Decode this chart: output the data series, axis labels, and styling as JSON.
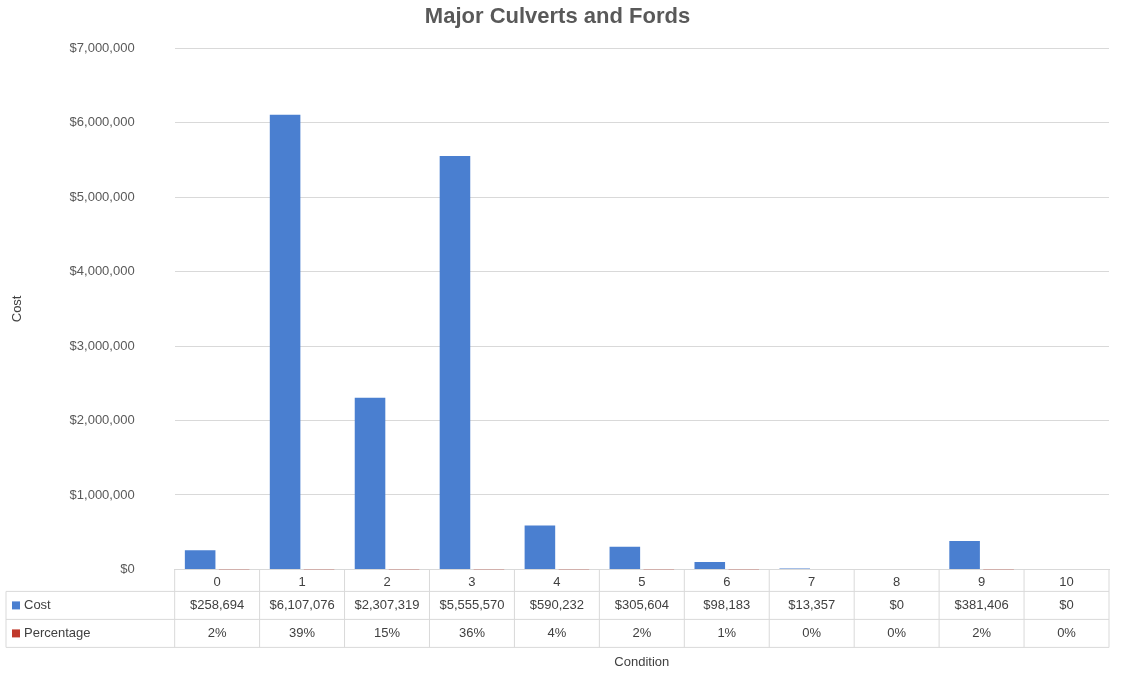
{
  "chart_data": {
    "type": "bar",
    "title": "Major Culverts and Fords",
    "annotations": [
      "Condition"
    ],
    "ylabel": "Cost",
    "categories": [
      "0",
      "1",
      "2",
      "3",
      "4",
      "5",
      "6",
      "7",
      "8",
      "9",
      "10"
    ],
    "series": [
      {
        "name": "Cost",
        "color": "#4a7fd0",
        "values": [
          258694,
          6107076,
          2307319,
          5555570,
          590232,
          305604,
          98183,
          13357,
          0,
          381406,
          0
        ],
        "value_labels": [
          "$258,694",
          "$6,107,076",
          "$2,307,319",
          "$5,555,570",
          "$590,232",
          "$305,604",
          "$98,183",
          "$13,357",
          "$0",
          "$381,406",
          "$0"
        ]
      },
      {
        "name": "Percentage",
        "color": "#c0392b",
        "values": [
          2,
          39,
          15,
          36,
          4,
          2,
          1,
          0,
          0,
          2,
          0
        ],
        "value_labels": [
          "2%",
          "39%",
          "15%",
          "36%",
          "4%",
          "2%",
          "1%",
          "0%",
          "0%",
          "2%",
          "0%"
        ]
      }
    ],
    "ylim": [
      0,
      7000000
    ],
    "yticks": [
      {
        "value": 0,
        "label": "$0"
      },
      {
        "value": 1000000,
        "label": "$1,000,000"
      },
      {
        "value": 2000000,
        "label": "$2,000,000"
      },
      {
        "value": 3000000,
        "label": "$3,000,000"
      },
      {
        "value": 4000000,
        "label": "$4,000,000"
      },
      {
        "value": 5000000,
        "label": "$5,000,000"
      },
      {
        "value": 6000000,
        "label": "$6,000,000"
      },
      {
        "value": 7000000,
        "label": "$7,000,000"
      }
    ],
    "grid": "y",
    "legend": "bottom left"
  }
}
